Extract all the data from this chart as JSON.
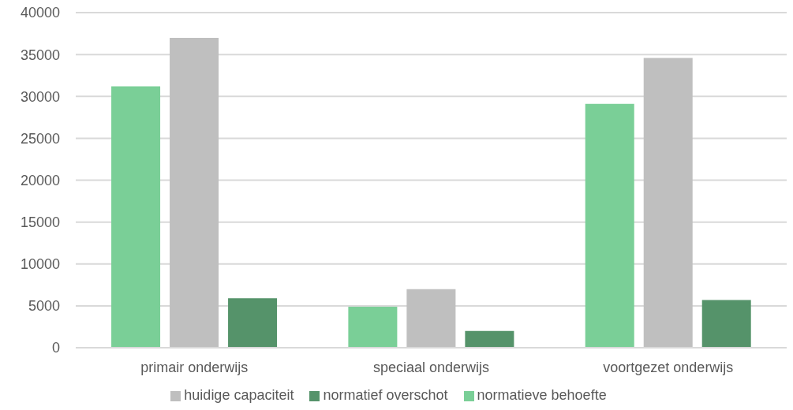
{
  "chart_data": {
    "type": "bar",
    "categories": [
      "primair onderwijs",
      "speciaal onderwijs",
      "voortgezet onderwijs"
    ],
    "series": [
      {
        "name": "normatieve behoefte",
        "color": "#7acf97",
        "values": [
          31200,
          4900,
          29100
        ]
      },
      {
        "name": "huidige capaciteit",
        "color": "#bfbfbf",
        "values": [
          37000,
          7000,
          34600
        ]
      },
      {
        "name": "normatief overschot",
        "color": "#55936a",
        "values": [
          5900,
          2000,
          5700
        ]
      }
    ],
    "ylim": [
      0,
      40000
    ],
    "yticks": [
      0,
      5000,
      10000,
      15000,
      20000,
      25000,
      30000,
      35000,
      40000
    ],
    "grid": "y",
    "legend": "bottom"
  }
}
